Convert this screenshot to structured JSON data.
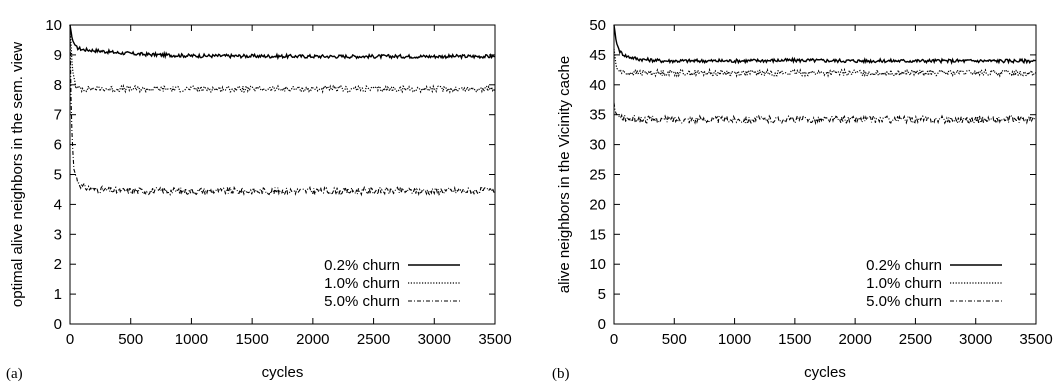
{
  "chart_data": [
    {
      "type": "line",
      "panel_label": "(a)",
      "xlabel": "cycles",
      "ylabel": "optimal alive neighbors in the sem. view",
      "xlim": [
        0,
        3500
      ],
      "ylim": [
        0,
        10
      ],
      "xticks": [
        0,
        500,
        1000,
        1500,
        2000,
        2500,
        3000,
        3500
      ],
      "yticks": [
        0,
        1,
        2,
        3,
        4,
        5,
        6,
        7,
        8,
        9,
        10
      ],
      "grid": false,
      "legend_position": "bottom-right",
      "series": [
        {
          "name": "0.2% churn",
          "style": "solid",
          "x": [
            0,
            20,
            50,
            100,
            200,
            400,
            600,
            1000,
            1500,
            2000,
            2500,
            3000,
            3500
          ],
          "y": [
            10.0,
            9.5,
            9.25,
            9.18,
            9.15,
            9.07,
            9.02,
            8.97,
            8.96,
            8.95,
            8.95,
            8.95,
            8.95
          ]
        },
        {
          "name": "1.0% churn",
          "style": "dotted",
          "x": [
            0,
            20,
            50,
            100,
            500,
            1000,
            1500,
            2000,
            2500,
            3000,
            3500
          ],
          "y": [
            10.0,
            8.5,
            7.9,
            7.87,
            7.86,
            7.86,
            7.86,
            7.86,
            7.86,
            7.86,
            7.86
          ]
        },
        {
          "name": "5.0% churn",
          "style": "dash-dot",
          "x": [
            0,
            10,
            30,
            60,
            100,
            200,
            400,
            1000,
            1500,
            2000,
            2500,
            3000,
            3500
          ],
          "y": [
            10.0,
            7.0,
            5.2,
            4.8,
            4.6,
            4.5,
            4.45,
            4.45,
            4.45,
            4.45,
            4.45,
            4.45,
            4.45
          ]
        }
      ]
    },
    {
      "type": "line",
      "panel_label": "(b)",
      "xlabel": "cycles",
      "ylabel": "alive neighbors in the Vicinity cache",
      "xlim": [
        0,
        3500
      ],
      "ylim": [
        0,
        50
      ],
      "xticks": [
        0,
        500,
        1000,
        1500,
        2000,
        2500,
        3000,
        3500
      ],
      "yticks": [
        0,
        5,
        10,
        15,
        20,
        25,
        30,
        35,
        40,
        45,
        50
      ],
      "grid": false,
      "legend_position": "bottom-right",
      "series": [
        {
          "name": "0.2% churn",
          "style": "solid",
          "x": [
            0,
            20,
            50,
            100,
            200,
            400,
            1000,
            1500,
            2000,
            2500,
            3000,
            3500
          ],
          "y": [
            50.0,
            47.0,
            45.5,
            44.8,
            44.3,
            44.0,
            44.0,
            44.1,
            44.0,
            44.0,
            44.0,
            44.0
          ]
        },
        {
          "name": "1.0% churn",
          "style": "dotted",
          "x": [
            0,
            20,
            50,
            100,
            500,
            1000,
            1500,
            2000,
            2500,
            3000,
            3500
          ],
          "y": [
            46.0,
            42.8,
            42.2,
            42.0,
            42.0,
            42.0,
            42.0,
            42.0,
            42.0,
            42.0,
            42.0
          ]
        },
        {
          "name": "5.0% churn",
          "style": "dash-dot",
          "x": [
            0,
            10,
            30,
            60,
            100,
            300,
            1000,
            1500,
            2000,
            2500,
            3000,
            3500
          ],
          "y": [
            37.0,
            35.5,
            34.8,
            34.5,
            34.3,
            34.2,
            34.2,
            34.2,
            34.2,
            34.2,
            34.2,
            34.2
          ]
        }
      ]
    }
  ]
}
